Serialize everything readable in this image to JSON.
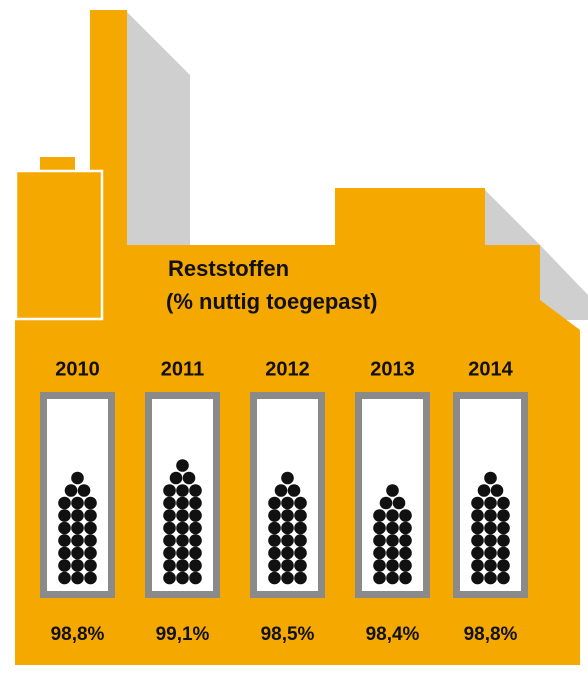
{
  "chart_data": {
    "type": "pictogram",
    "title": "Reststoffen",
    "subtitle": "(% nuttig toegepast)",
    "categories": [
      "2010",
      "2011",
      "2012",
      "2013",
      "2014"
    ],
    "values": [
      98.8,
      99.1,
      98.5,
      98.4,
      98.8
    ],
    "value_labels": [
      "98,8%",
      "99,1%",
      "98,5%",
      "98,4%",
      "98,8%"
    ],
    "color": "#f5a800"
  }
}
